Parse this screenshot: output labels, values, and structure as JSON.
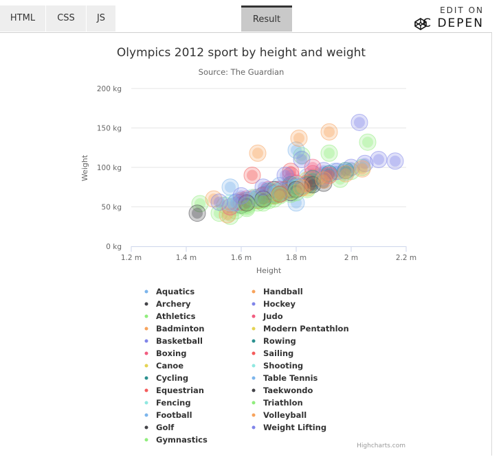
{
  "topbar": {
    "tabs": [
      {
        "label": "HTML"
      },
      {
        "label": "CSS"
      },
      {
        "label": "JS"
      },
      {
        "label": "Result"
      }
    ],
    "active_tab": "Result",
    "edit_on_label": "EDIT ON",
    "codepen_label": "C DEPEN"
  },
  "credits": "Highcharts.com",
  "colors": {
    "grid": "#e6e6e6",
    "axis": "#ccd6eb",
    "title": "#333333",
    "label": "#666666"
  },
  "chart_data": {
    "type": "scatter",
    "title": "Olympics 2012 sport by height and weight",
    "subtitle": "Source: The Guardian",
    "xlabel": "Height",
    "ylabel": "Weight",
    "xlim": [
      1.2,
      2.2
    ],
    "ylim": [
      0,
      200
    ],
    "x_ticks": [
      "1.2 m",
      "1.4 m",
      "1.6 m",
      "1.8 m",
      "2 m",
      "2.2 m"
    ],
    "y_ticks": [
      "0 kg",
      "50 kg",
      "100 kg",
      "150 kg",
      "200 kg"
    ],
    "grid": "horizontal",
    "legend_position": "bottom",
    "series": [
      {
        "name": "Aquatics",
        "color": "#7cb5ec",
        "points": [
          [
            1.56,
            75
          ],
          [
            1.58,
            52
          ],
          [
            1.62,
            55
          ],
          [
            1.7,
            68
          ],
          [
            1.74,
            77
          ],
          [
            1.78,
            82
          ],
          [
            1.84,
            88
          ],
          [
            1.9,
            90
          ],
          [
            1.94,
            95
          ],
          [
            1.98,
            94
          ],
          [
            1.8,
            55
          ],
          [
            1.68,
            62
          ]
        ]
      },
      {
        "name": "Archery",
        "color": "#434348",
        "points": [
          [
            1.62,
            58
          ],
          [
            1.68,
            65
          ],
          [
            1.72,
            72
          ],
          [
            1.78,
            76
          ],
          [
            1.85,
            78
          ],
          [
            1.9,
            80
          ]
        ]
      },
      {
        "name": "Athletics",
        "color": "#90ed7d",
        "points": [
          [
            1.45,
            54
          ],
          [
            1.52,
            42
          ],
          [
            1.56,
            38
          ],
          [
            1.62,
            48
          ],
          [
            1.68,
            55
          ],
          [
            1.72,
            60
          ],
          [
            1.78,
            66
          ],
          [
            1.84,
            72
          ],
          [
            1.92,
            118
          ],
          [
            1.96,
            85
          ],
          [
            2.0,
            95
          ],
          [
            2.04,
            100
          ],
          [
            2.06,
            132
          ],
          [
            1.82,
            115
          ]
        ]
      },
      {
        "name": "Badminton",
        "color": "#f7a35c",
        "points": [
          [
            1.6,
            58
          ],
          [
            1.65,
            62
          ],
          [
            1.7,
            66
          ],
          [
            1.76,
            72
          ],
          [
            1.82,
            75
          ]
        ]
      },
      {
        "name": "Basketball",
        "color": "#8085e9",
        "points": [
          [
            1.75,
            68
          ],
          [
            1.8,
            72
          ],
          [
            1.85,
            80
          ],
          [
            1.9,
            88
          ],
          [
            1.95,
            95
          ],
          [
            2.0,
            100
          ],
          [
            2.05,
            105
          ],
          [
            2.1,
            110
          ],
          [
            2.16,
            108
          ],
          [
            2.03,
            157
          ]
        ]
      },
      {
        "name": "Boxing",
        "color": "#f15c80",
        "points": [
          [
            1.62,
            55
          ],
          [
            1.68,
            62
          ],
          [
            1.74,
            72
          ],
          [
            1.8,
            80
          ],
          [
            1.86,
            92
          ]
        ]
      },
      {
        "name": "Canoe",
        "color": "#e4d354",
        "points": [
          [
            1.66,
            62
          ],
          [
            1.72,
            70
          ],
          [
            1.78,
            78
          ],
          [
            1.84,
            84
          ],
          [
            1.88,
            88
          ]
        ]
      },
      {
        "name": "Cycling",
        "color": "#2b908f",
        "points": [
          [
            1.6,
            56
          ],
          [
            1.66,
            60
          ],
          [
            1.72,
            66
          ],
          [
            1.78,
            72
          ],
          [
            1.84,
            78
          ]
        ]
      },
      {
        "name": "Equestrian",
        "color": "#f45b5b",
        "points": [
          [
            1.62,
            55
          ],
          [
            1.68,
            60
          ],
          [
            1.74,
            66
          ],
          [
            1.8,
            72
          ],
          [
            1.64,
            90
          ],
          [
            1.78,
            95
          ]
        ]
      },
      {
        "name": "Fencing",
        "color": "#91e8e1",
        "points": [
          [
            1.68,
            62
          ],
          [
            1.74,
            68
          ],
          [
            1.8,
            74
          ],
          [
            1.86,
            78
          ]
        ]
      },
      {
        "name": "Football",
        "color": "#7cb5ec",
        "points": [
          [
            1.64,
            58
          ],
          [
            1.7,
            64
          ],
          [
            1.76,
            72
          ],
          [
            1.82,
            76
          ],
          [
            1.8,
            122
          ]
        ]
      },
      {
        "name": "Golf",
        "color": "#434348",
        "points": [
          [
            1.44,
            42
          ],
          [
            1.6,
            52
          ],
          [
            1.66,
            58
          ],
          [
            1.72,
            64
          ],
          [
            1.78,
            68
          ]
        ]
      },
      {
        "name": "Gymnastics",
        "color": "#90ed7d",
        "points": [
          [
            1.54,
            52
          ],
          [
            1.58,
            45
          ],
          [
            1.62,
            50
          ],
          [
            1.66,
            55
          ],
          [
            1.7,
            58
          ]
        ]
      },
      {
        "name": "Handball",
        "color": "#f7a35c",
        "points": [
          [
            1.5,
            60
          ],
          [
            1.55,
            40
          ],
          [
            1.66,
            118
          ],
          [
            1.81,
            137
          ],
          [
            1.92,
            145
          ]
        ]
      },
      {
        "name": "Hockey",
        "color": "#8085e9",
        "points": [
          [
            1.58,
            56
          ],
          [
            1.64,
            60
          ],
          [
            1.7,
            66
          ],
          [
            1.76,
            70
          ],
          [
            1.82,
            76
          ],
          [
            1.9,
            96
          ]
        ]
      },
      {
        "name": "Judo",
        "color": "#f15c80",
        "points": [
          [
            1.56,
            50
          ],
          [
            1.62,
            60
          ],
          [
            1.7,
            72
          ],
          [
            1.78,
            90
          ],
          [
            1.86,
            100
          ]
        ]
      },
      {
        "name": "Modern Pentathlon",
        "color": "#e4d354",
        "points": [
          [
            1.66,
            58
          ],
          [
            1.72,
            64
          ],
          [
            1.78,
            70
          ],
          [
            1.84,
            74
          ]
        ]
      },
      {
        "name": "Rowing",
        "color": "#2b908f",
        "points": [
          [
            1.7,
            70
          ],
          [
            1.78,
            78
          ],
          [
            1.86,
            86
          ],
          [
            1.92,
            92
          ],
          [
            1.98,
            96
          ]
        ]
      },
      {
        "name": "Sailing",
        "color": "#f45b5b",
        "points": [
          [
            1.6,
            56
          ],
          [
            1.68,
            64
          ],
          [
            1.76,
            72
          ],
          [
            1.84,
            80
          ],
          [
            1.92,
            90
          ]
        ]
      },
      {
        "name": "Shooting",
        "color": "#91e8e1",
        "points": [
          [
            1.56,
            55
          ],
          [
            1.64,
            62
          ],
          [
            1.72,
            70
          ],
          [
            1.8,
            78
          ]
        ]
      },
      {
        "name": "Table Tennis",
        "color": "#7cb5ec",
        "points": [
          [
            1.58,
            55
          ],
          [
            1.66,
            62
          ],
          [
            1.74,
            70
          ],
          [
            1.8,
            75
          ]
        ]
      },
      {
        "name": "Taekwondo",
        "color": "#434348",
        "points": [
          [
            1.62,
            55
          ],
          [
            1.68,
            60
          ],
          [
            1.74,
            66
          ],
          [
            1.8,
            72
          ],
          [
            1.86,
            78
          ]
        ]
      },
      {
        "name": "Triathlon",
        "color": "#90ed7d",
        "points": [
          [
            1.62,
            52
          ],
          [
            1.68,
            58
          ],
          [
            1.74,
            64
          ],
          [
            1.8,
            68
          ]
        ]
      },
      {
        "name": "Volleyball",
        "color": "#f7a35c",
        "points": [
          [
            1.74,
            66
          ],
          [
            1.82,
            74
          ],
          [
            1.9,
            84
          ],
          [
            1.98,
            92
          ],
          [
            2.04,
            98
          ]
        ]
      },
      {
        "name": "Weight Lifting",
        "color": "#8085e9",
        "points": [
          [
            1.52,
            56
          ],
          [
            1.6,
            64
          ],
          [
            1.68,
            75
          ],
          [
            1.76,
            90
          ],
          [
            1.82,
            110
          ]
        ]
      }
    ]
  }
}
